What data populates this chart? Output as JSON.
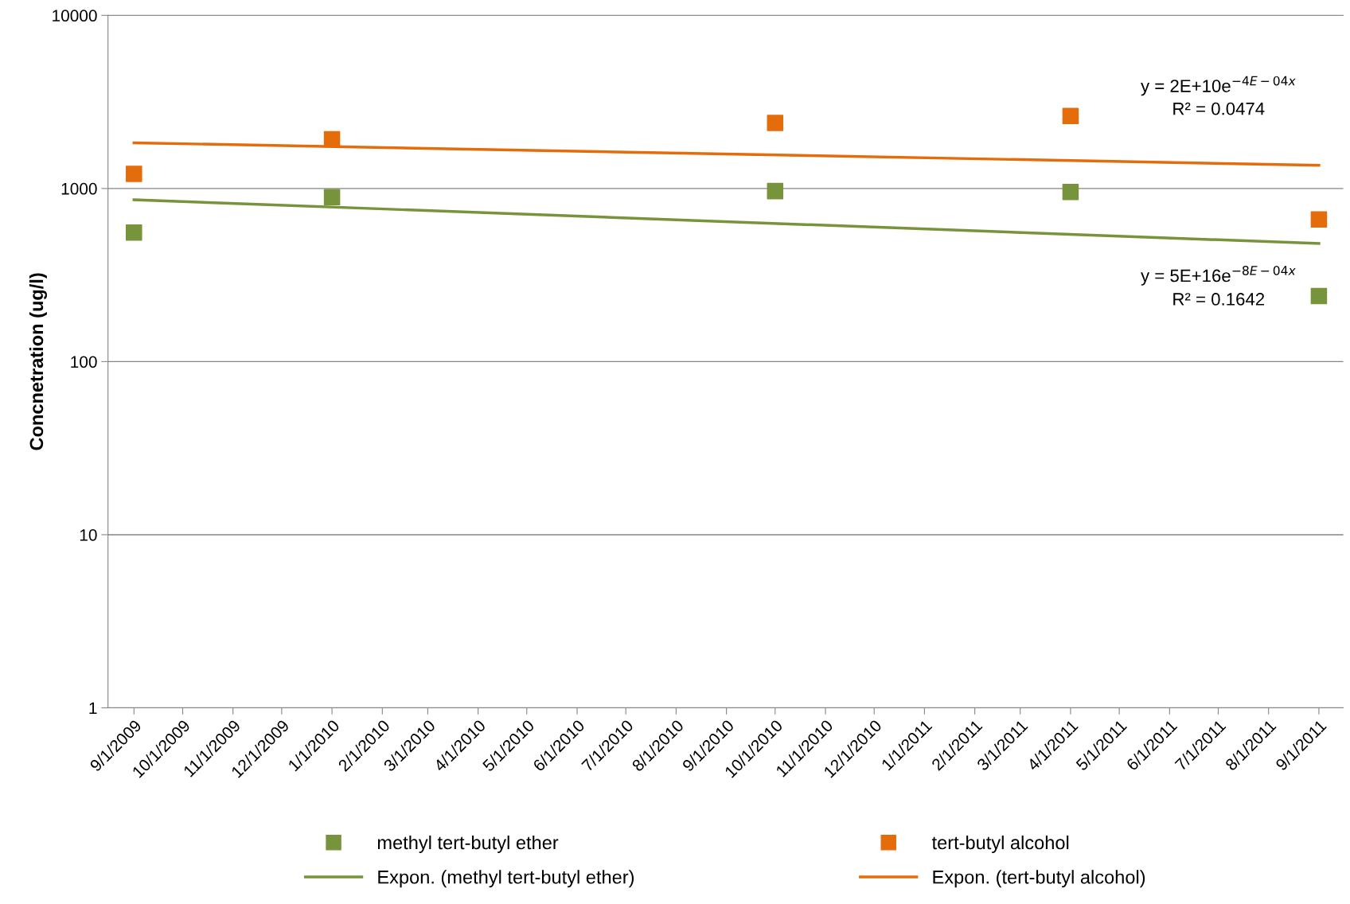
{
  "chart_data": {
    "type": "scatter",
    "ylabel": "Concnetration (ug/l)",
    "log": "y",
    "grid": "y",
    "legend": "bottom",
    "xlim": [
      "2009-08-16",
      "2011-09-16"
    ],
    "xticks": [
      {
        "value": "2009-09-01",
        "label": "9/1/2009"
      },
      {
        "value": "2009-10-01",
        "label": "10/1/2009"
      },
      {
        "value": "2009-11-01",
        "label": "11/1/2009"
      },
      {
        "value": "2009-12-01",
        "label": "12/1/2009"
      },
      {
        "value": "2010-01-01",
        "label": "1/1/2010"
      },
      {
        "value": "2010-02-01",
        "label": "2/1/2010"
      },
      {
        "value": "2010-03-01",
        "label": "3/1/2010"
      },
      {
        "value": "2010-04-01",
        "label": "4/1/2010"
      },
      {
        "value": "2010-05-01",
        "label": "5/1/2010"
      },
      {
        "value": "2010-06-01",
        "label": "6/1/2010"
      },
      {
        "value": "2010-07-01",
        "label": "7/1/2010"
      },
      {
        "value": "2010-08-01",
        "label": "8/1/2010"
      },
      {
        "value": "2010-09-01",
        "label": "9/1/2010"
      },
      {
        "value": "2010-10-01",
        "label": "10/1/2010"
      },
      {
        "value": "2010-11-01",
        "label": "11/1/2010"
      },
      {
        "value": "2010-12-01",
        "label": "12/1/2010"
      },
      {
        "value": "2011-01-01",
        "label": "1/1/2011"
      },
      {
        "value": "2011-02-01",
        "label": "2/1/2011"
      },
      {
        "value": "2011-03-01",
        "label": "3/1/2011"
      },
      {
        "value": "2011-04-01",
        "label": "4/1/2011"
      },
      {
        "value": "2011-05-01",
        "label": "5/1/2011"
      },
      {
        "value": "2011-06-01",
        "label": "6/1/2011"
      },
      {
        "value": "2011-07-01",
        "label": "7/1/2011"
      },
      {
        "value": "2011-08-01",
        "label": "8/1/2011"
      },
      {
        "value": "2011-09-01",
        "label": "9/1/2011"
      }
    ],
    "ylim": [
      1,
      10000
    ],
    "yticks": [
      1,
      10,
      100,
      1000,
      10000
    ],
    "series": [
      {
        "name": "methyl tert-butyl ether",
        "marker": "square",
        "color": "#77933c",
        "x": [
          "2009-09-01",
          "2010-01-01",
          "2010-10-01",
          "2011-04-01",
          "2011-09-01"
        ],
        "values": [
          557,
          891,
          966,
          955,
          239
        ]
      },
      {
        "name": "tert-butyl alcohol",
        "marker": "square",
        "color": "#e46c0a",
        "x": [
          "2009-09-01",
          "2010-01-01",
          "2010-10-01",
          "2011-04-01",
          "2011-09-01"
        ],
        "values": [
          1215,
          1923,
          2390,
          2620,
          662
        ]
      },
      {
        "name": "Expon. (methyl tert-butyl ether)",
        "type": "line",
        "color": "#77933c",
        "x": [
          "2009-09-01",
          "2011-09-01"
        ],
        "values": [
          861,
          481
        ]
      },
      {
        "name": "Expon. (tert-butyl alcohol)",
        "type": "line",
        "color": "#e46c0a",
        "x": [
          "2009-09-01",
          "2011-09-01"
        ],
        "values": [
          1836,
          1362
        ]
      }
    ],
    "annotations": [
      "y = 2E+10e$^{−4E−04x}$",
      "R² = 0.0474",
      "y = 5E+16e$^{−8E−04x}$",
      "R² = 0.1642"
    ]
  }
}
